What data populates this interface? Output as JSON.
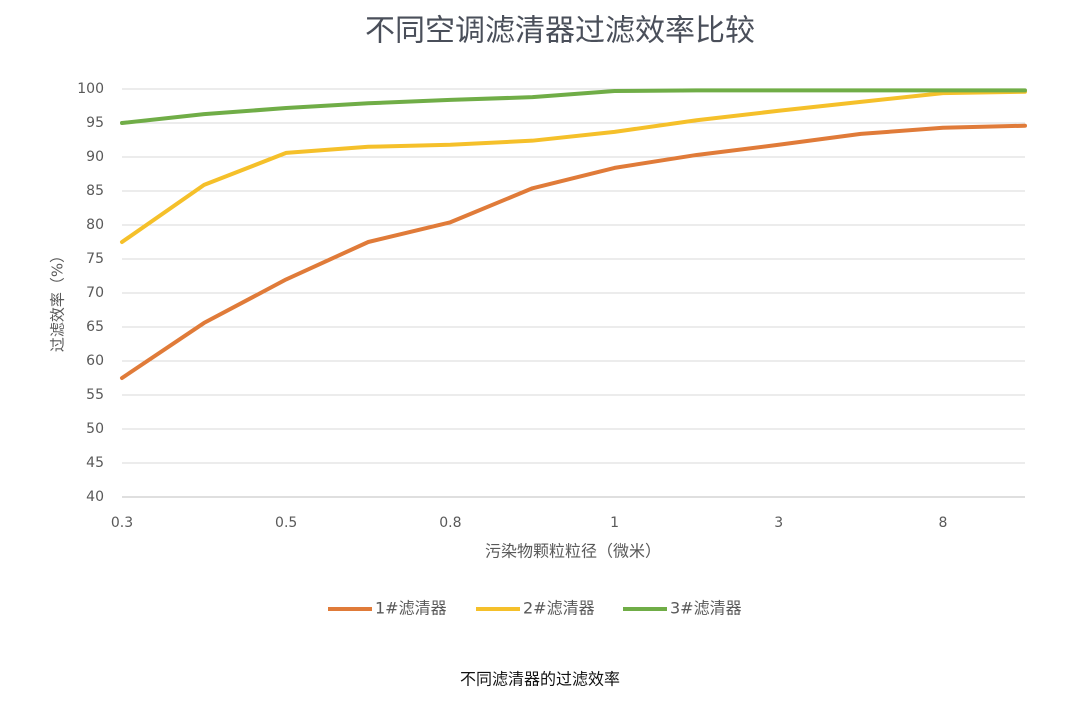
{
  "chart_data": {
    "type": "line",
    "title": "不同空调滤清器过滤效率比较",
    "x_label": "污染物颗粒粒径（微米）",
    "y_label": "过滤效率（%）",
    "caption": "不同滤清器的过滤效率",
    "categories": [
      "0.3",
      null,
      "0.5",
      null,
      "0.8",
      null,
      "1",
      null,
      "3",
      null,
      "8",
      null
    ],
    "series": [
      {
        "name": "1#滤清器",
        "color": "#e07b39",
        "values": [
          57.5,
          65.6,
          72,
          77.5,
          80.4,
          85.4,
          88.4,
          90.3,
          91.8,
          93.4,
          94.3,
          94.6
        ]
      },
      {
        "name": "2#滤清器",
        "color": "#f5c02a",
        "values": [
          77.5,
          85.9,
          90.6,
          91.5,
          91.8,
          92.4,
          93.7,
          95.4,
          96.8,
          98.1,
          99.4,
          99.6
        ]
      },
      {
        "name": "3#滤清器",
        "color": "#70ad47",
        "values": [
          95,
          96.3,
          97.2,
          97.9,
          98.4,
          98.8,
          99.7,
          99.8,
          99.8,
          99.8,
          99.8,
          99.8
        ]
      }
    ],
    "ylim": [
      40,
      100
    ],
    "yticks": [
      40,
      45,
      50,
      55,
      60,
      65,
      70,
      75,
      80,
      85,
      90,
      95,
      100
    ],
    "grid": true,
    "legend": "bottom"
  }
}
